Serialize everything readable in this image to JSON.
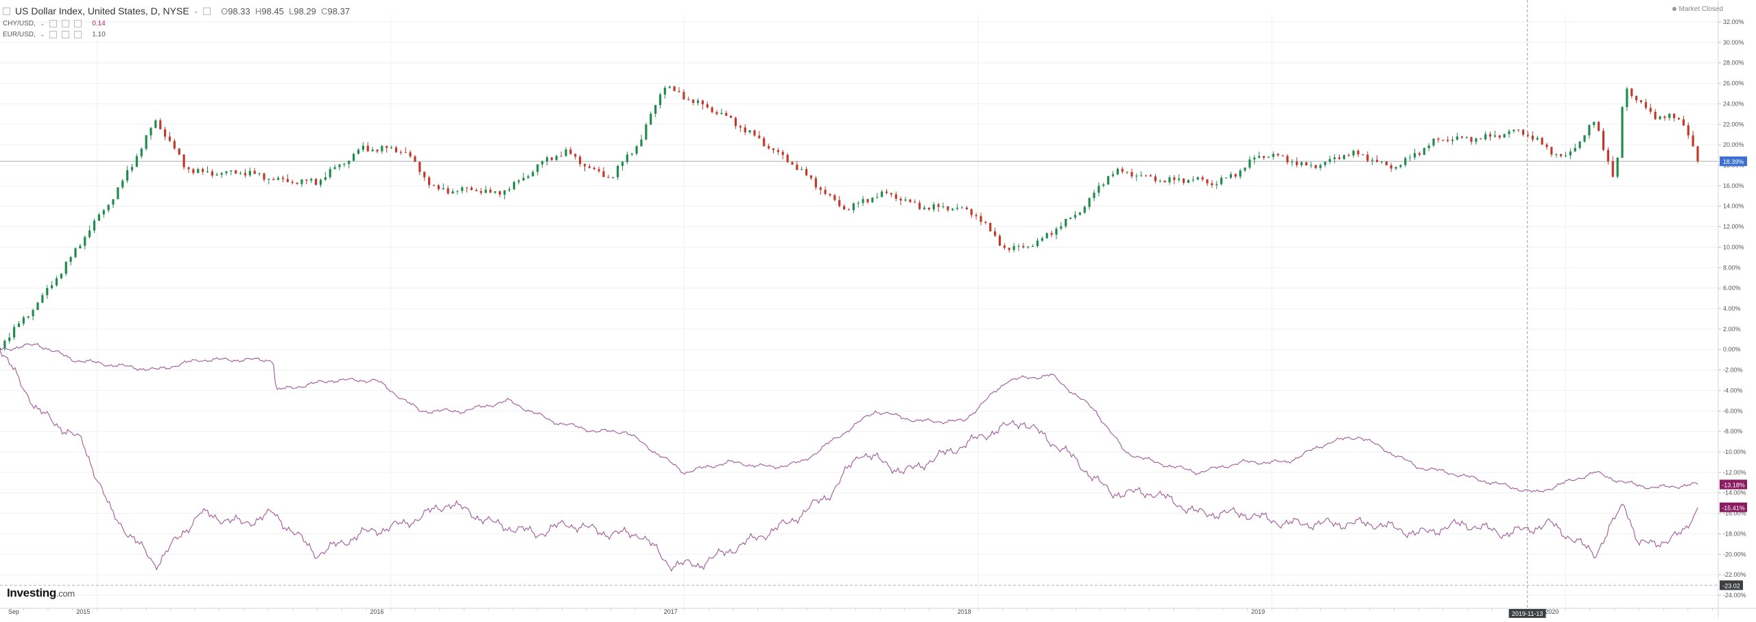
{
  "legend": {
    "main_title": "US Dollar Index, United States, D, NYSE",
    "ohlc": {
      "o_key": "O",
      "o": "98.33",
      "h_key": "H",
      "h": "98.45",
      "l_key": "L",
      "l": "98.29",
      "c_key": "C",
      "c": "98.37"
    },
    "sub": [
      {
        "name": "CHY/USD,",
        "value": "0.14"
      },
      {
        "name": "EUR/USD,",
        "value": "1.10"
      }
    ]
  },
  "market_status": "Market Closed",
  "logo": {
    "brand": "Investing",
    "suffix": ".com"
  },
  "colors": {
    "up": "#1e8c4e",
    "down": "#c0392b",
    "compare": "#a0579a",
    "last_blue": "#3b6fd1",
    "last_purple": "#8b1c62",
    "grid": "#eef0f2"
  },
  "chart_data": {
    "type": "line",
    "subtype": "percent-change comparison; main series drawn as daily candlesticks",
    "x_axis": {
      "labels": [
        "Sep",
        "2015",
        "2016",
        "2017",
        "2018",
        "2019",
        "2020"
      ],
      "crosshair_label": "2019-11-13"
    },
    "y_axis": {
      "unit": "%",
      "range": [
        -24,
        32
      ],
      "ticks": [
        "32.00%",
        "30.00%",
        "28.00%",
        "26.00%",
        "24.00%",
        "22.00%",
        "20.00%",
        "18.00%",
        "16.00%",
        "14.00%",
        "12.00%",
        "10.00%",
        "8.00%",
        "6.00%",
        "4.00%",
        "2.00%",
        "0.00%",
        "-2.00%",
        "-4.00%",
        "-6.00%",
        "-8.00%",
        "-10.00%",
        "-12.00%",
        "-14.00%",
        "-16.00%",
        "-18.00%",
        "-20.00%",
        "-22.00%",
        "-24.00%"
      ],
      "last_value_labels": [
        "18.39%",
        "-13.18%",
        "-15.41%"
      ],
      "extra_label": "-23.02"
    },
    "series": [
      {
        "legend_ref": "main",
        "style": "candlestick",
        "x": [
          2014.67,
          2014.8,
          2014.92,
          2015.05,
          2015.2,
          2015.3,
          2015.45,
          2015.6,
          2015.75,
          2015.9,
          2016.05,
          2016.15,
          2016.35,
          2016.5,
          2016.6,
          2016.75,
          2016.85,
          2016.93,
          2017.0,
          2017.1,
          2017.25,
          2017.4,
          2017.55,
          2017.7,
          2017.85,
          2018.0,
          2018.1,
          2018.2,
          2018.35,
          2018.45,
          2018.6,
          2018.8,
          2018.95,
          2019.1,
          2019.25,
          2019.4,
          2019.55,
          2019.7,
          2019.85,
          2020.0,
          2020.1,
          2020.17,
          2020.2,
          2020.3,
          2020.4,
          2020.45
        ],
        "values": [
          0,
          5,
          9,
          15,
          22,
          18,
          17,
          17,
          16,
          20,
          19,
          16,
          15,
          18,
          19,
          17,
          20,
          26,
          25,
          23,
          21,
          17,
          14,
          15,
          14,
          13,
          10,
          10,
          14,
          17,
          17,
          16,
          19,
          18,
          19,
          18,
          20,
          21,
          21,
          19,
          22,
          16,
          26,
          23,
          22,
          18.39
        ]
      },
      {
        "legend_ref": "sub.0",
        "style": "line",
        "x": [
          2014.67,
          2014.8,
          2014.92,
          2015.05,
          2015.2,
          2015.35,
          2015.5,
          2015.6,
          2015.61,
          2015.8,
          2015.95,
          2016.1,
          2016.25,
          2016.4,
          2016.55,
          2016.7,
          2016.8,
          2016.9,
          2017.0,
          2017.15,
          2017.3,
          2017.4,
          2017.5,
          2017.65,
          2017.8,
          2017.95,
          2018.1,
          2018.25,
          2018.4,
          2018.5,
          2018.6,
          2018.75,
          2018.9,
          2019.05,
          2019.2,
          2019.3,
          2019.4,
          2019.5,
          2019.6,
          2019.75,
          2019.9,
          2020.0,
          2020.1,
          2020.2,
          2020.3,
          2020.45
        ],
        "values": [
          0,
          0.5,
          -1,
          -1.5,
          -2,
          -1,
          -1,
          -1,
          -4,
          -3,
          -3,
          -6,
          -6,
          -5,
          -7,
          -8,
          -8,
          -10,
          -12,
          -11,
          -11.5,
          -11,
          -9,
          -6,
          -7,
          -7,
          -3,
          -2.5,
          -6,
          -10,
          -11,
          -12,
          -11,
          -11,
          -9,
          -8.5,
          -10,
          -11.5,
          -12,
          -13,
          -14,
          -13,
          -12,
          -13,
          -13.5,
          -13.18
        ]
      },
      {
        "legend_ref": "sub.1",
        "style": "line",
        "x": [
          2014.67,
          2014.8,
          2014.95,
          2015.05,
          2015.2,
          2015.35,
          2015.5,
          2015.6,
          2015.75,
          2015.9,
          2016.05,
          2016.2,
          2016.35,
          2016.5,
          2016.6,
          2016.75,
          2016.85,
          2016.95,
          2017.05,
          2017.2,
          2017.35,
          2017.5,
          2017.6,
          2017.75,
          2017.9,
          2018.05,
          2018.15,
          2018.3,
          2018.45,
          2018.6,
          2018.75,
          2018.9,
          2019.05,
          2019.2,
          2019.35,
          2019.5,
          2019.65,
          2019.8,
          2019.95,
          2020.1,
          2020.2,
          2020.25,
          2020.3,
          2020.4,
          2020.45
        ],
        "values": [
          0,
          -6,
          -9,
          -16,
          -21,
          -16,
          -17,
          -16,
          -20,
          -18,
          -17,
          -15,
          -17,
          -18,
          -17,
          -18,
          -18,
          -21,
          -21,
          -19,
          -17,
          -14,
          -10,
          -12,
          -10,
          -8,
          -7,
          -10,
          -14,
          -14,
          -16,
          -16,
          -17,
          -17,
          -17,
          -18,
          -17,
          -18,
          -17,
          -20,
          -15,
          -19,
          -19,
          -18,
          -15.41
        ]
      }
    ]
  }
}
